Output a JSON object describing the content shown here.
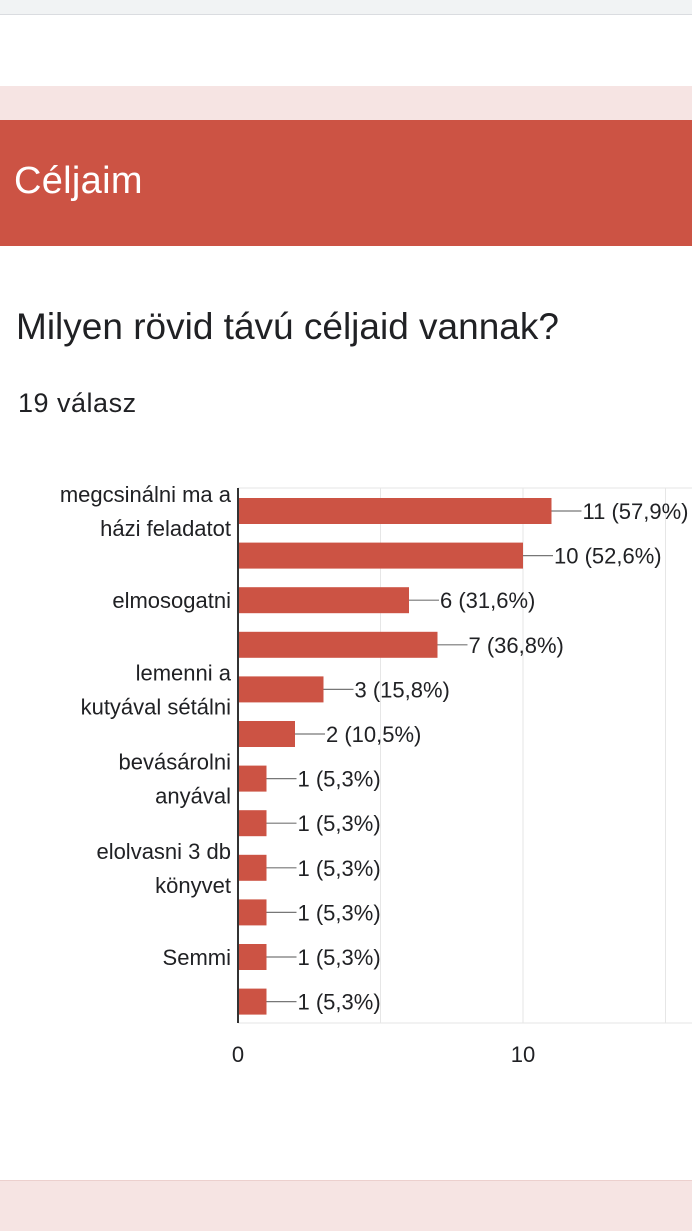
{
  "colors": {
    "accent": "#cc5344",
    "band": "#f6e4e3"
  },
  "section": {
    "title": "Céljaim"
  },
  "question": {
    "title": "Milyen rövid távú céljaid vannak?",
    "responses": "19 válasz"
  },
  "chart_data": {
    "type": "bar",
    "orientation": "horizontal",
    "category_labels": [
      "megcsinálni ma a\nházi feladatot",
      "",
      "elmosogatni",
      "",
      "lemenni a\nkutyával sétálni",
      "",
      "bevásárolni\nanyával",
      "",
      "elolvasni 3 db\nkönyvet",
      "",
      "Semmi",
      ""
    ],
    "values": [
      11,
      10,
      6,
      7,
      3,
      2,
      1,
      1,
      1,
      1,
      1,
      1
    ],
    "value_labels": [
      "11 (57,9%)",
      "10 (52,6%)",
      "6 (31,6%)",
      "7 (36,8%)",
      "3 (15,8%)",
      "2 (10,5%)",
      "1 (5,3%)",
      "1 (5,3%)",
      "1 (5,3%)",
      "1 (5,3%)",
      "1 (5,3%)",
      "1 (5,3%)"
    ],
    "xaxis": {
      "min": 0,
      "max": 15,
      "ticks": [
        0,
        10
      ],
      "tick_labels": [
        "0",
        "10"
      ]
    },
    "grid": true,
    "bar_color": "#cc5344"
  }
}
